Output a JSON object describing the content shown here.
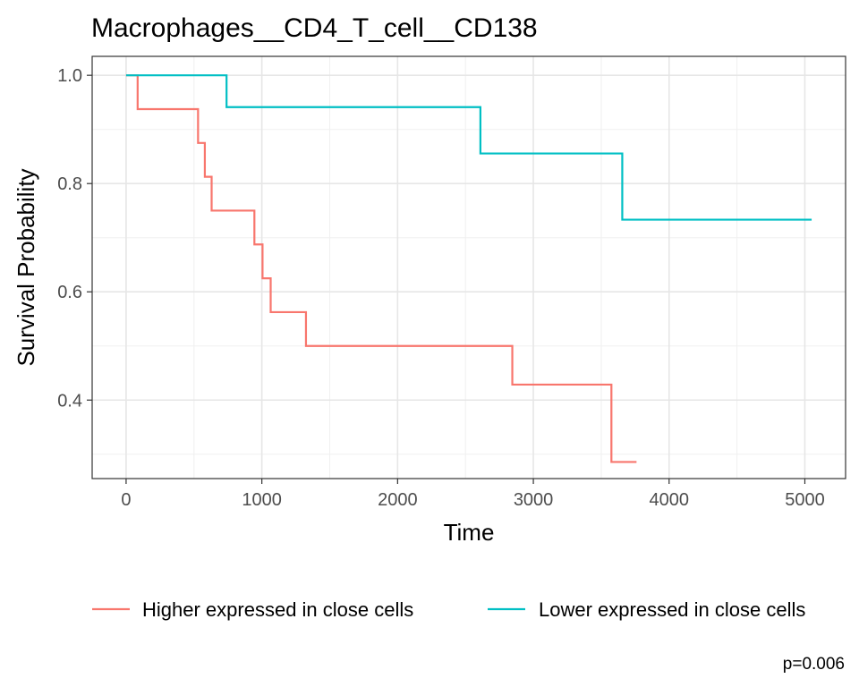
{
  "chart_data": {
    "type": "line",
    "subtype": "kaplan-meier step curve",
    "title": "Macrophages__CD4_T_cell__CD138",
    "xlabel": "Time",
    "ylabel": "Survival Probability",
    "xlim": [
      -250,
      5300
    ],
    "ylim": [
      0.255,
      1.035
    ],
    "x_ticks": [
      0,
      1000,
      2000,
      3000,
      4000,
      5000
    ],
    "x_tick_labels": [
      "0",
      "1000",
      "2000",
      "3000",
      "4000",
      "5000"
    ],
    "y_ticks": [
      0.4,
      0.6,
      0.8,
      1.0
    ],
    "y_tick_labels": [
      "0.4",
      "0.6",
      "0.8",
      "1.0"
    ],
    "grid": true,
    "legend_position": "bottom",
    "series": [
      {
        "name": "Higher expressed in close cells",
        "color": "#F8766D",
        "x": [
          0,
          85,
          530,
          580,
          630,
          945,
          1005,
          1065,
          1325,
          2845,
          3575,
          3760
        ],
        "y": [
          1.0,
          0.9375,
          0.875,
          0.8125,
          0.75,
          0.6875,
          0.625,
          0.5625,
          0.5,
          0.4286,
          0.2857,
          0.2857
        ]
      },
      {
        "name": "Lower expressed in close cells",
        "color": "#00BFC4",
        "x": [
          0,
          740,
          2610,
          3655,
          5050
        ],
        "y": [
          1.0,
          0.9412,
          0.8556,
          0.7333,
          0.7333
        ]
      }
    ],
    "annotations": [
      "p=0.006"
    ]
  }
}
